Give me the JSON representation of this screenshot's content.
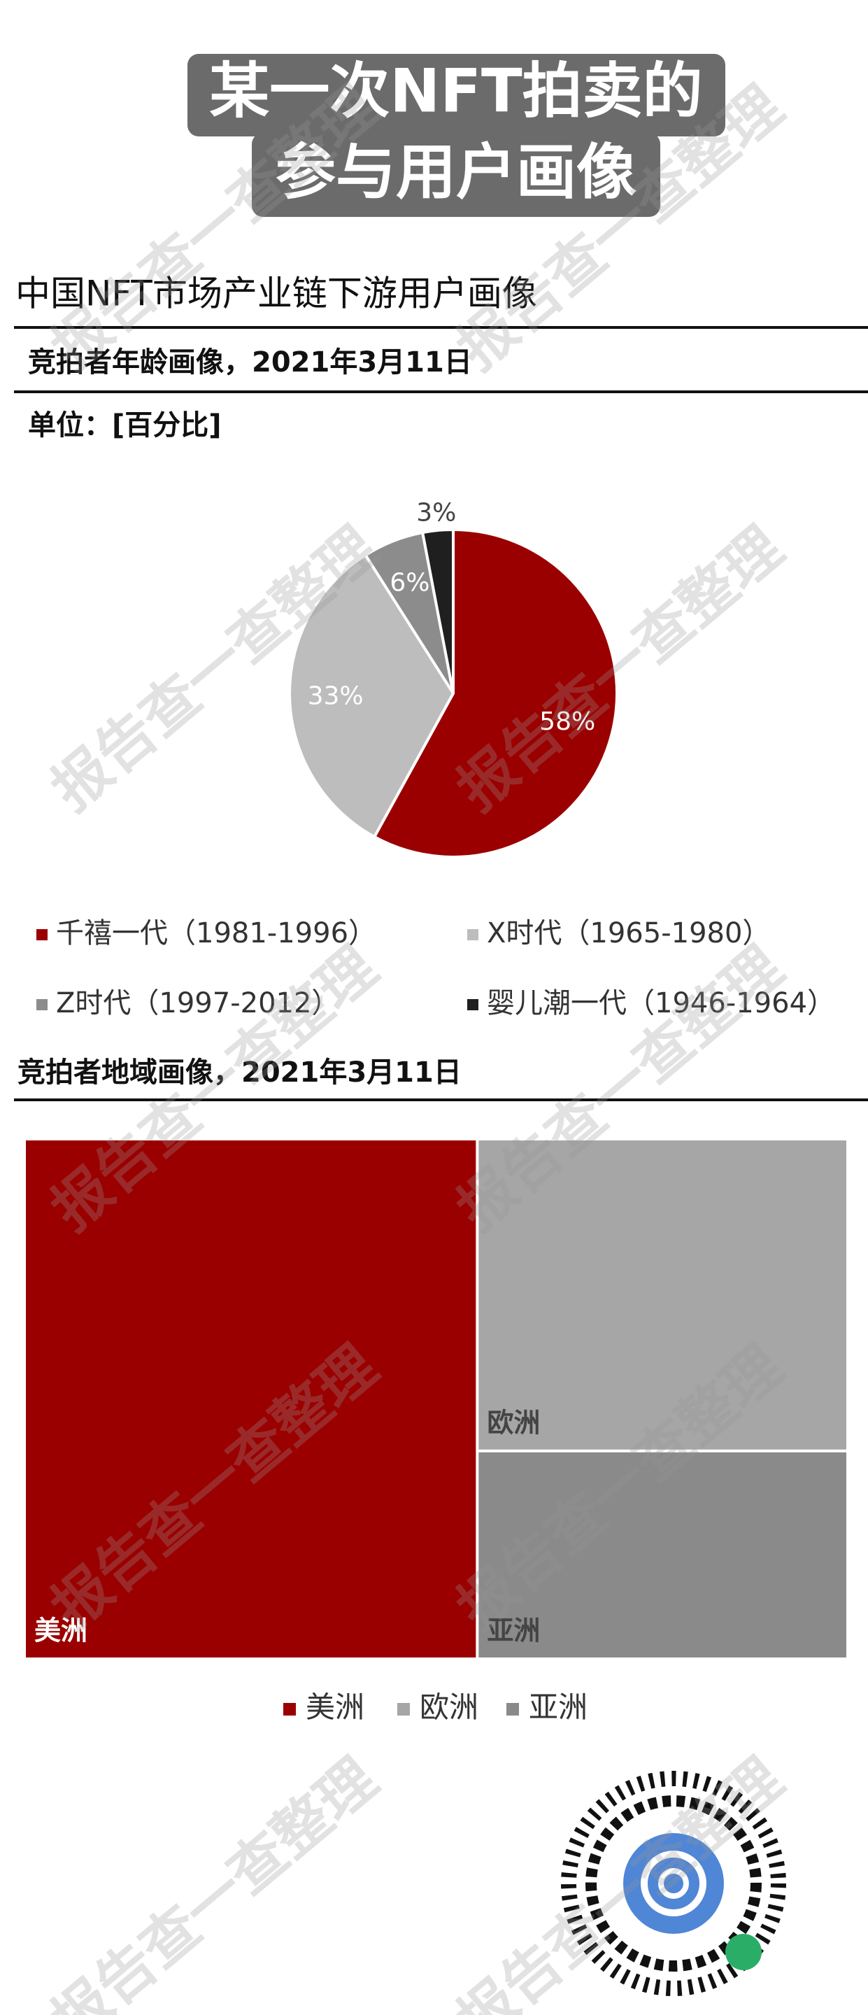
{
  "header": {
    "title_lines": [
      "某一次NFT拍卖的",
      "参与用户画像"
    ]
  },
  "report_title": "中国NFT市场产业链下游用户画像",
  "watermark": "报告查一查整理",
  "chart_data": [
    {
      "type": "pie",
      "title": "竞拍者年龄画像，2021年3月11日",
      "subtitle": "单位：[百分比]",
      "categories": [
        "千禧一代（1981-1996）",
        "X时代（1965-1980）",
        "Z时代（1997-2012）",
        "婴儿潮一代（1946-1964）"
      ],
      "values": [
        58,
        33,
        6,
        3
      ],
      "value_labels": [
        "58%",
        "33%",
        "6%",
        "3%"
      ],
      "colors": [
        "#9b0000",
        "#bdbdbd",
        "#8c8c8c",
        "#1f1f1f"
      ]
    },
    {
      "type": "treemap",
      "title": "竞拍者地域画像，2021年3月11日",
      "categories": [
        "美洲",
        "欧洲",
        "亚洲"
      ],
      "values": [
        55,
        27,
        18
      ],
      "colors": [
        "#9b0000",
        "#a6a6a6",
        "#8a8a8a"
      ]
    }
  ]
}
